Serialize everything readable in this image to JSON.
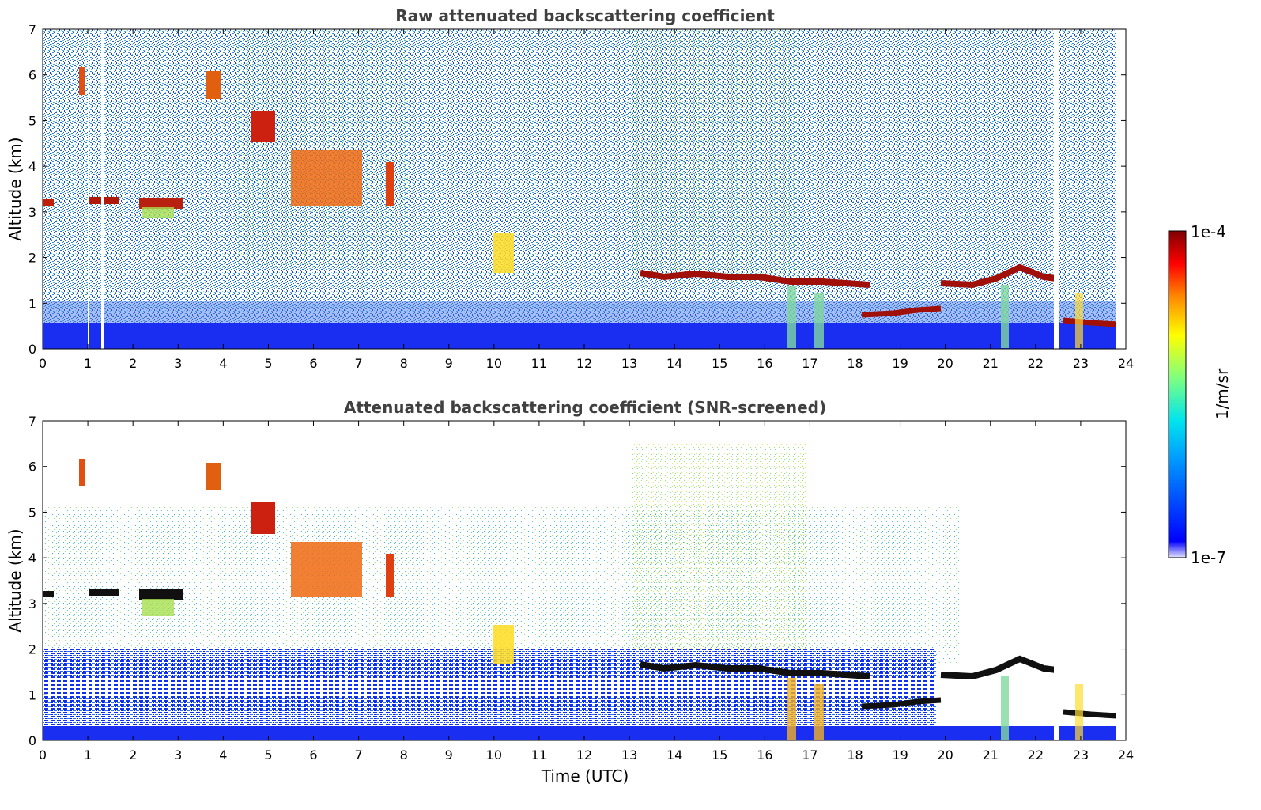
{
  "chart_data": [
    {
      "type": "heatmap",
      "title": "Raw attenuated backscattering coefficient",
      "xlabel": "",
      "ylabel": "Altitude (km)",
      "xlim": [
        0,
        24
      ],
      "ylim": [
        0,
        7
      ],
      "xticks": [
        "0",
        "1",
        "2",
        "3",
        "4",
        "5",
        "6",
        "7",
        "8",
        "9",
        "10",
        "11",
        "12",
        "13",
        "14",
        "15",
        "16",
        "17",
        "18",
        "19",
        "20",
        "21",
        "22",
        "23",
        "24"
      ],
      "yticks": [
        "0",
        "1",
        "2",
        "3",
        "4",
        "5",
        "6",
        "7"
      ],
      "missing_periods_utc": [
        [
          1.0,
          1.03
        ],
        [
          1.3,
          1.33
        ],
        [
          22.4,
          22.5
        ],
        [
          23.8,
          24.0
        ]
      ],
      "cloud_layers": [
        {
          "t": [
            0.0,
            0.25
          ],
          "alt_km": [
            3.2,
            3.2
          ]
        },
        {
          "t": [
            1.0,
            1.65
          ],
          "alt_km": [
            3.15,
            3.25
          ]
        },
        {
          "t": [
            2.1,
            3.2
          ],
          "alt_km": [
            3.15,
            2.95
          ]
        },
        {
          "t": [
            13.3,
            16.4
          ],
          "alt_km": [
            1.5,
            1.55
          ]
        },
        {
          "t": [
            16.4,
            18.3
          ],
          "alt_km": [
            1.45,
            1.4
          ]
        },
        {
          "t": [
            18.2,
            19.8
          ],
          "alt_km": [
            0.7,
            0.85
          ]
        },
        {
          "t": [
            19.8,
            21.0
          ],
          "alt_km": [
            1.35,
            1.55
          ]
        },
        {
          "t": [
            21.0,
            22.4
          ],
          "alt_km": [
            1.6,
            1.55
          ]
        },
        {
          "t": [
            22.6,
            23.8
          ],
          "alt_km": [
            0.55,
            0.55
          ]
        }
      ]
    },
    {
      "type": "heatmap",
      "title": "Attenuated backscattering coefficient (SNR-screened)",
      "xlabel": "Time (UTC)",
      "ylabel": "Altitude (km)",
      "xlim": [
        0,
        24
      ],
      "ylim": [
        0,
        7
      ],
      "xticks": [
        "0",
        "1",
        "2",
        "3",
        "4",
        "5",
        "6",
        "7",
        "8",
        "9",
        "10",
        "11",
        "12",
        "13",
        "14",
        "15",
        "16",
        "17",
        "18",
        "19",
        "20",
        "21",
        "22",
        "23",
        "24"
      ],
      "yticks": [
        "0",
        "1",
        "2",
        "3",
        "4",
        "5",
        "6",
        "7"
      ]
    }
  ],
  "colorbar": {
    "label": "1/m/sr",
    "max_label": "1e-4",
    "min_label": "1e-7",
    "colors": [
      "#e6e6fa",
      "#0000ff",
      "#0099ff",
      "#00e5ee",
      "#7fff7f",
      "#ffff00",
      "#ff8800",
      "#ff0000",
      "#800000"
    ]
  }
}
